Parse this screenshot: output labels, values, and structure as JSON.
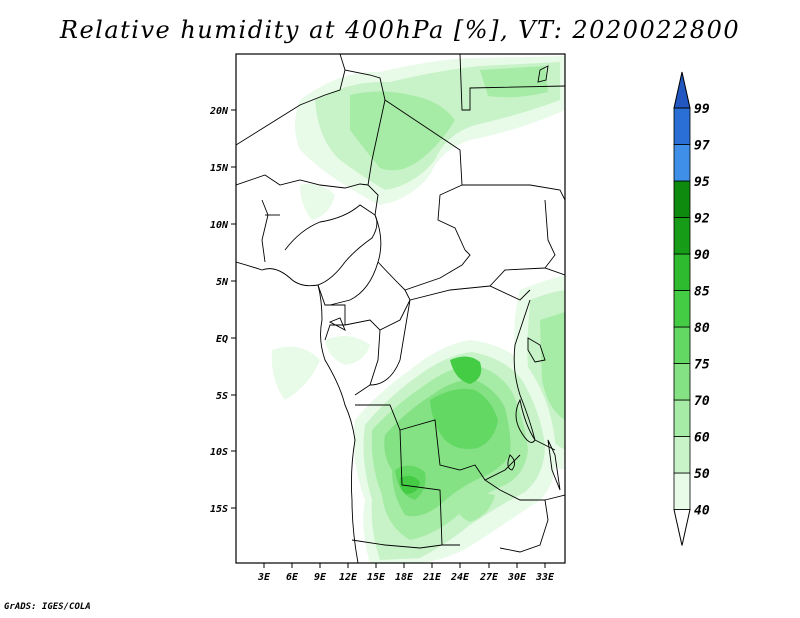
{
  "title": "Relative humidity at 400hPa [%], VT: 2020022800",
  "credit": "GrADS: IGES/COLA",
  "map": {
    "lat_labels": [
      "20N",
      "15N",
      "10N",
      "5N",
      "EQ",
      "5S",
      "10S",
      "15S"
    ],
    "lon_labels": [
      "3E",
      "6E",
      "9E",
      "12E",
      "15E",
      "18E",
      "21E",
      "24E",
      "27E",
      "30E",
      "33E"
    ],
    "colors": {
      "shade_40": "#e8fae8",
      "shade_50": "#c8f3c8",
      "shade_60": "#a6eba6",
      "shade_70": "#84e284",
      "shade_75": "#63d863",
      "shade_80": "#45cc45",
      "shade_85": "#2fbb2f",
      "border": "#000000"
    }
  },
  "colorbar": {
    "labels": [
      "40",
      "50",
      "60",
      "70",
      "75",
      "80",
      "85",
      "90",
      "92",
      "95",
      "97",
      "99"
    ],
    "colors": [
      "#ffffff",
      "#e8fae8",
      "#c8f3c8",
      "#a6eba6",
      "#84e284",
      "#63d863",
      "#45cc45",
      "#2fbb2f",
      "#179c17",
      "#0e8a0e",
      "#3f8fe8",
      "#2a6fd6",
      "#2256c0"
    ]
  }
}
